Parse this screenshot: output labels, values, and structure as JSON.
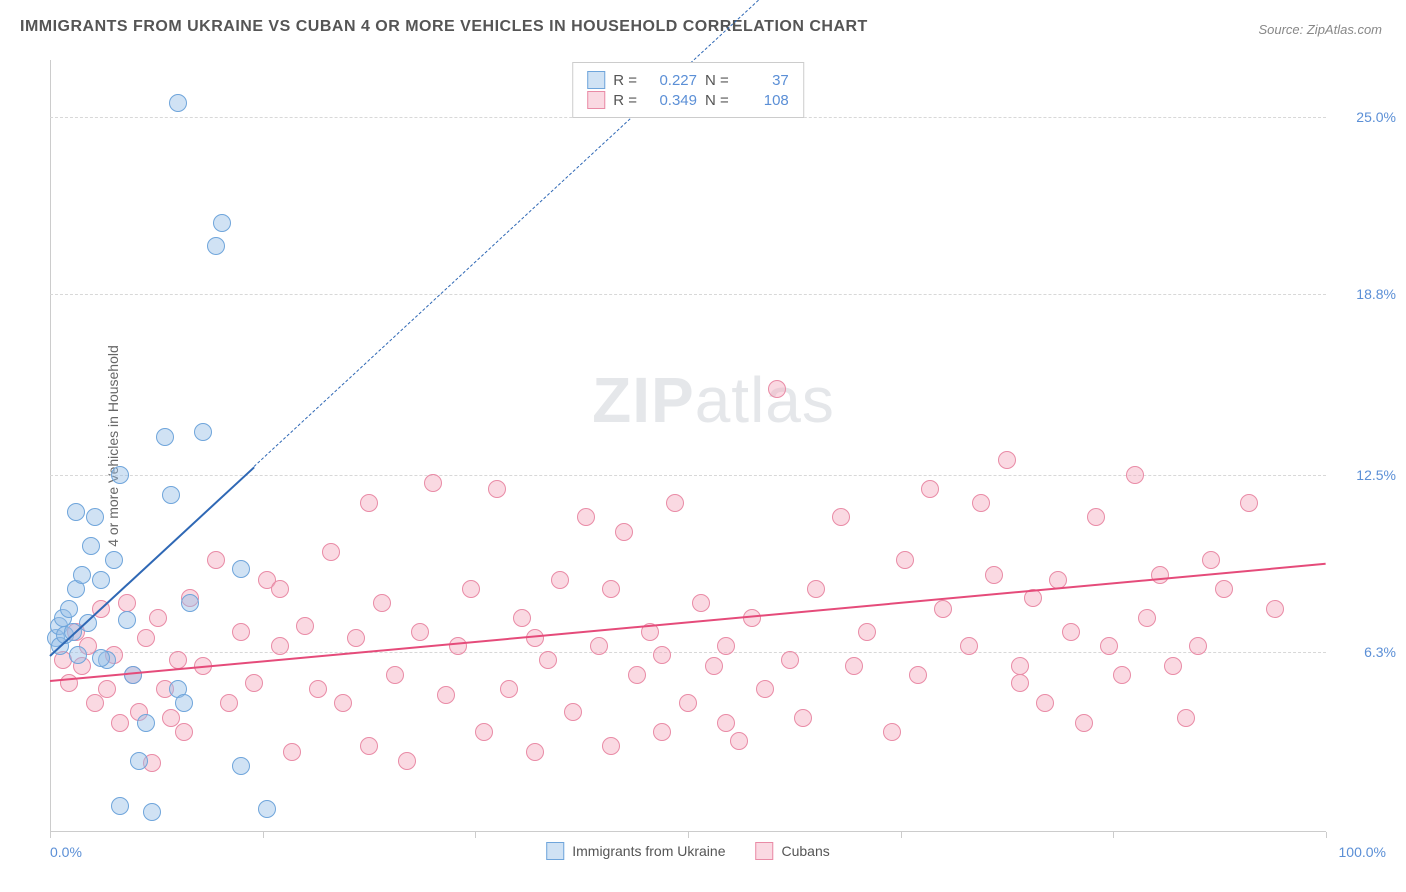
{
  "title": "IMMIGRANTS FROM UKRAINE VS CUBAN 4 OR MORE VEHICLES IN HOUSEHOLD CORRELATION CHART",
  "source": "Source: ZipAtlas.com",
  "ylabel": "4 or more Vehicles in Household",
  "watermark_a": "ZIP",
  "watermark_b": "atlas",
  "chart": {
    "type": "scatter",
    "xlim": [
      0,
      100
    ],
    "ylim": [
      0,
      27
    ],
    "background_color": "#ffffff",
    "grid_color": "#d8d8d8",
    "yticks": [
      {
        "v": 6.3,
        "label": "6.3%"
      },
      {
        "v": 12.5,
        "label": "12.5%"
      },
      {
        "v": 18.8,
        "label": "18.8%"
      },
      {
        "v": 25.0,
        "label": "25.0%"
      }
    ],
    "xtick_positions": [
      0,
      16.67,
      33.33,
      50,
      66.67,
      83.33,
      100
    ],
    "xtick_left": "0.0%",
    "xtick_right": "100.0%",
    "marker_radius": 9,
    "marker_border_width": 1,
    "series": [
      {
        "id": "ukraine",
        "label": "Immigrants from Ukraine",
        "fill": "rgba(150,190,230,0.45)",
        "stroke": "#6fa5db",
        "trend_color": "#2f68b5",
        "trend_width": 2.5,
        "R": "0.227",
        "N": "37",
        "trend": {
          "x1": 0,
          "y1": 6.2,
          "x2": 16,
          "y2": 12.8,
          "extend_to_x": 57
        },
        "points": [
          [
            0.5,
            6.8
          ],
          [
            0.7,
            7.2
          ],
          [
            0.8,
            6.5
          ],
          [
            1.0,
            7.5
          ],
          [
            1.2,
            6.9
          ],
          [
            1.5,
            7.8
          ],
          [
            1.8,
            7.0
          ],
          [
            2.0,
            8.5
          ],
          [
            2.2,
            6.2
          ],
          [
            2.5,
            9.0
          ],
          [
            3.0,
            7.3
          ],
          [
            3.2,
            10.0
          ],
          [
            3.5,
            11.0
          ],
          [
            4.0,
            8.8
          ],
          [
            4.5,
            6.0
          ],
          [
            5.0,
            9.5
          ],
          [
            5.5,
            12.5
          ],
          [
            6.0,
            7.4
          ],
          [
            6.5,
            5.5
          ],
          [
            7.0,
            2.5
          ],
          [
            7.5,
            3.8
          ],
          [
            8.0,
            0.7
          ],
          [
            9.0,
            13.8
          ],
          [
            9.5,
            11.8
          ],
          [
            10.0,
            5.0
          ],
          [
            10.5,
            4.5
          ],
          [
            11.0,
            8.0
          ],
          [
            12.0,
            14.0
          ],
          [
            13.0,
            20.5
          ],
          [
            10.0,
            25.5
          ],
          [
            13.5,
            21.3
          ],
          [
            15.0,
            9.2
          ],
          [
            15.0,
            2.3
          ],
          [
            17.0,
            0.8
          ],
          [
            5.5,
            0.9
          ],
          [
            2.0,
            11.2
          ],
          [
            4.0,
            6.1
          ]
        ]
      },
      {
        "id": "cubans",
        "label": "Cubans",
        "fill": "rgba(245,170,190,0.45)",
        "stroke": "#e98ba6",
        "trend_color": "#e54b7a",
        "trend_width": 2.5,
        "R": "0.349",
        "N": "108",
        "trend": {
          "x1": 0,
          "y1": 5.3,
          "x2": 100,
          "y2": 9.4
        },
        "points": [
          [
            1,
            6.0
          ],
          [
            1.5,
            5.2
          ],
          [
            2,
            7.0
          ],
          [
            2.5,
            5.8
          ],
          [
            3,
            6.5
          ],
          [
            3.5,
            4.5
          ],
          [
            4,
            7.8
          ],
          [
            4.5,
            5.0
          ],
          [
            5,
            6.2
          ],
          [
            5.5,
            3.8
          ],
          [
            6,
            8.0
          ],
          [
            6.5,
            5.5
          ],
          [
            7,
            4.2
          ],
          [
            7.5,
            6.8
          ],
          [
            8,
            2.4
          ],
          [
            8.5,
            7.5
          ],
          [
            9,
            5.0
          ],
          [
            9.5,
            4.0
          ],
          [
            10,
            6.0
          ],
          [
            10.5,
            3.5
          ],
          [
            11,
            8.2
          ],
          [
            12,
            5.8
          ],
          [
            13,
            9.5
          ],
          [
            14,
            4.5
          ],
          [
            15,
            7.0
          ],
          [
            16,
            5.2
          ],
          [
            17,
            8.8
          ],
          [
            18,
            6.5
          ],
          [
            19,
            2.8
          ],
          [
            20,
            7.2
          ],
          [
            21,
            5.0
          ],
          [
            22,
            9.8
          ],
          [
            23,
            4.5
          ],
          [
            24,
            6.8
          ],
          [
            25,
            3.0
          ],
          [
            26,
            8.0
          ],
          [
            27,
            5.5
          ],
          [
            28,
            2.5
          ],
          [
            29,
            7.0
          ],
          [
            30,
            12.2
          ],
          [
            31,
            4.8
          ],
          [
            32,
            6.5
          ],
          [
            33,
            8.5
          ],
          [
            34,
            3.5
          ],
          [
            35,
            12.0
          ],
          [
            36,
            5.0
          ],
          [
            37,
            7.5
          ],
          [
            38,
            2.8
          ],
          [
            39,
            6.0
          ],
          [
            40,
            8.8
          ],
          [
            41,
            4.2
          ],
          [
            42,
            11.0
          ],
          [
            43,
            6.5
          ],
          [
            44,
            3.0
          ],
          [
            45,
            10.5
          ],
          [
            46,
            5.5
          ],
          [
            47,
            7.0
          ],
          [
            48,
            6.2
          ],
          [
            49,
            11.5
          ],
          [
            50,
            4.5
          ],
          [
            51,
            8.0
          ],
          [
            52,
            5.8
          ],
          [
            53,
            6.5
          ],
          [
            54,
            3.2
          ],
          [
            55,
            7.5
          ],
          [
            56,
            5.0
          ],
          [
            57,
            15.5
          ],
          [
            58,
            6.0
          ],
          [
            59,
            4.0
          ],
          [
            60,
            8.5
          ],
          [
            62,
            11.0
          ],
          [
            64,
            7.0
          ],
          [
            66,
            3.5
          ],
          [
            67,
            9.5
          ],
          [
            68,
            5.5
          ],
          [
            69,
            12.0
          ],
          [
            70,
            7.8
          ],
          [
            72,
            6.5
          ],
          [
            73,
            11.5
          ],
          [
            74,
            9.0
          ],
          [
            75,
            13.0
          ],
          [
            76,
            5.8
          ],
          [
            77,
            8.2
          ],
          [
            78,
            4.5
          ],
          [
            79,
            8.8
          ],
          [
            80,
            7.0
          ],
          [
            81,
            3.8
          ],
          [
            82,
            11.0
          ],
          [
            83,
            6.5
          ],
          [
            84,
            5.5
          ],
          [
            85,
            12.5
          ],
          [
            86,
            7.5
          ],
          [
            87,
            9.0
          ],
          [
            88,
            5.8
          ],
          [
            89,
            4.0
          ],
          [
            90,
            6.5
          ],
          [
            91,
            9.5
          ],
          [
            92,
            8.5
          ],
          [
            94,
            11.5
          ],
          [
            96,
            7.8
          ],
          [
            76,
            5.2
          ],
          [
            63,
            5.8
          ],
          [
            48,
            3.5
          ],
          [
            53,
            3.8
          ],
          [
            38,
            6.8
          ],
          [
            44,
            8.5
          ],
          [
            25,
            11.5
          ],
          [
            18,
            8.5
          ]
        ]
      }
    ]
  },
  "stats_box": {
    "R_label": "R =",
    "N_label": "N ="
  }
}
